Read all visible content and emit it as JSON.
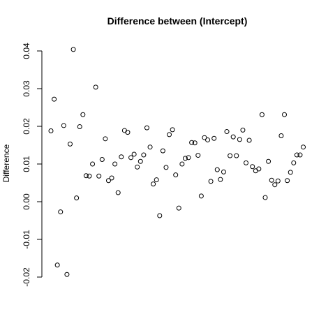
{
  "chart_data": {
    "type": "scatter",
    "title": "Difference between (Intercept)",
    "xlabel": "",
    "ylabel": "Difference",
    "ylim": [
      -0.02,
      0.04
    ],
    "yticks": [
      -0.02,
      -0.01,
      0.0,
      0.01,
      0.02,
      0.03,
      0.04
    ],
    "ytick_labels": [
      "-0.02",
      "-0.01",
      "0.00",
      "0.01",
      "0.02",
      "0.03",
      "0.04"
    ],
    "xlim": [
      1,
      80
    ],
    "x": [
      1,
      2,
      3,
      4,
      5,
      6,
      7,
      8,
      9,
      10,
      11,
      12,
      13,
      14,
      15,
      16,
      17,
      18,
      19,
      20,
      21,
      22,
      23,
      24,
      25,
      26,
      27,
      28,
      29,
      30,
      31,
      32,
      33,
      34,
      35,
      36,
      37,
      38,
      39,
      40,
      41,
      42,
      43,
      44,
      45,
      46,
      47,
      48,
      49,
      50,
      51,
      52,
      53,
      54,
      55,
      56,
      57,
      58,
      59,
      60,
      61,
      62,
      63,
      64,
      65,
      66,
      67,
      68,
      69,
      70,
      71,
      72,
      73,
      74,
      74.9,
      75.9,
      76.9,
      77.9,
      78.9,
      79.9
    ],
    "y": [
      0.0188,
      0.0272,
      -0.0168,
      -0.0027,
      0.0202,
      -0.0193,
      0.0153,
      0.0404,
      0.001,
      0.0199,
      0.0231,
      0.0069,
      0.0068,
      0.01,
      0.0304,
      0.0068,
      0.0112,
      0.0167,
      0.0056,
      0.0063,
      0.01,
      0.0024,
      0.0119,
      0.0189,
      0.0184,
      0.0117,
      0.0126,
      0.0092,
      0.0107,
      0.0124,
      0.0196,
      0.0145,
      0.0047,
      0.0058,
      -0.0037,
      0.0135,
      0.0091,
      0.0178,
      0.0191,
      0.0071,
      -0.0017,
      0.01,
      0.0115,
      0.0117,
      0.0157,
      0.0156,
      0.0123,
      0.0015,
      0.017,
      0.0164,
      0.0054,
      0.0168,
      0.0085,
      0.0059,
      0.0079,
      0.0186,
      0.0122,
      0.0172,
      0.0122,
      0.0165,
      0.019,
      0.0103,
      0.0163,
      0.0093,
      0.0082,
      0.0087,
      0.0231,
      0.0011,
      0.0107,
      0.0057,
      0.0045,
      0.0055,
      0.0175,
      0.0231,
      0.0056,
      0.0078,
      0.0103,
      0.0124,
      0.0124,
      0.0145
    ],
    "grid": false,
    "legend": "none"
  }
}
